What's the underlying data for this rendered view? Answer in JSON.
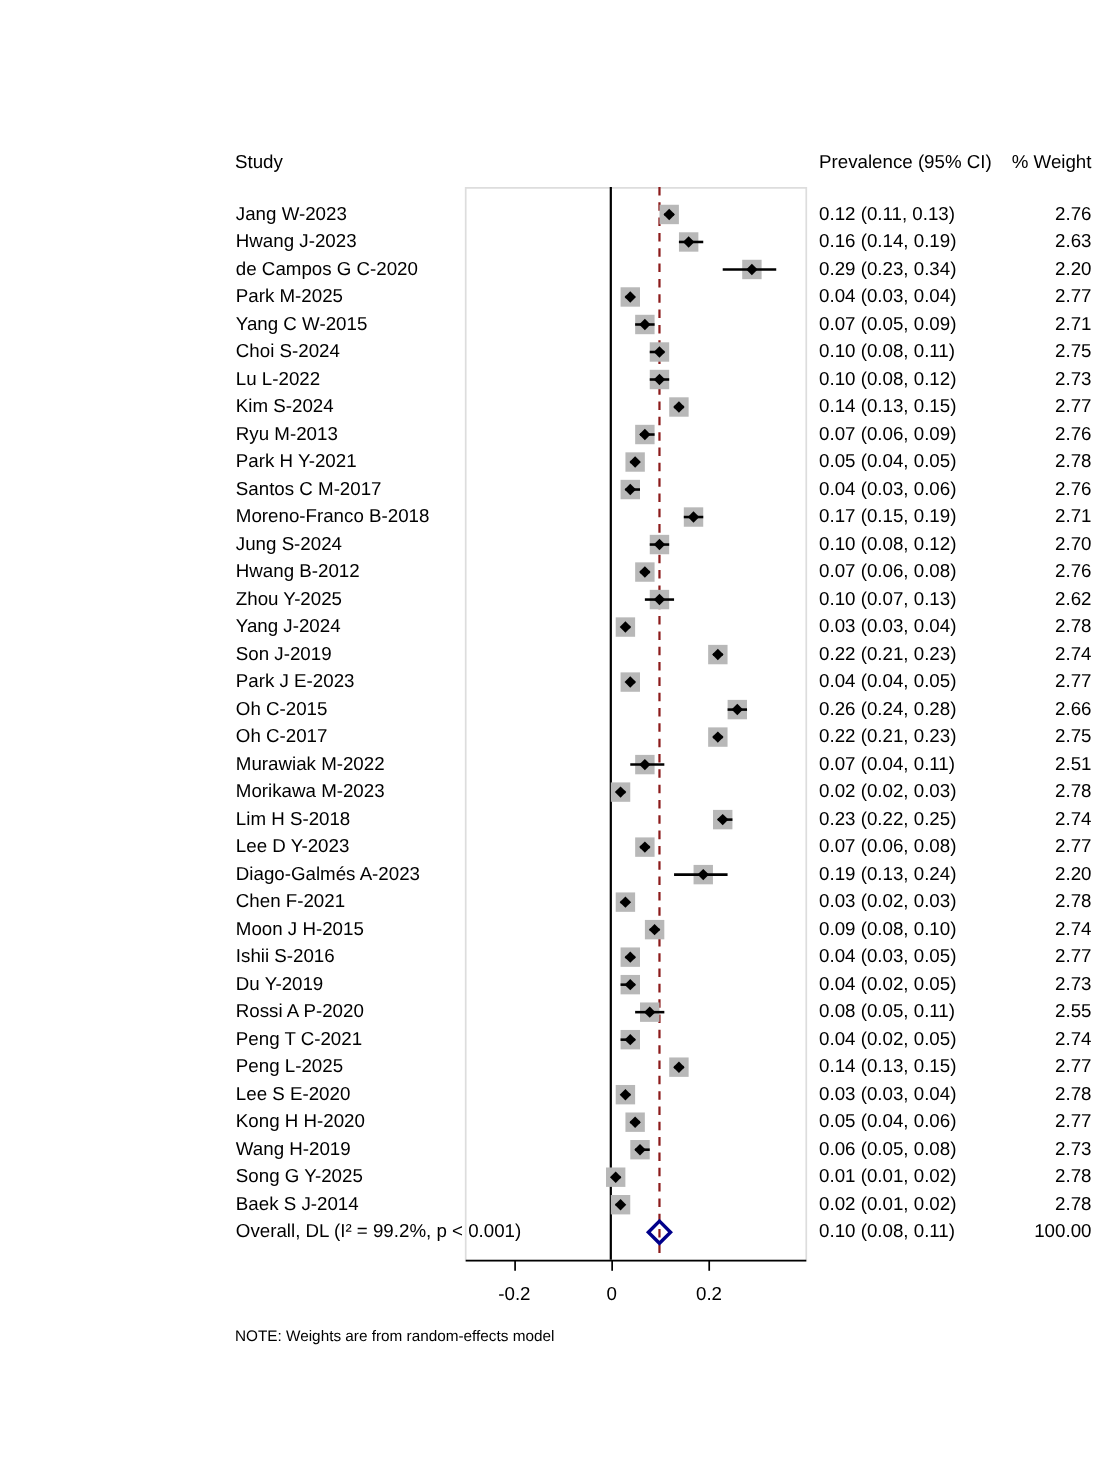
{
  "chart_data": {
    "type": "scatter",
    "orientation": "horizontal",
    "categories": [
      "Jang W-2023",
      "Hwang J-2023",
      "de Campos G C-2020",
      "Park M-2025",
      "Yang C W-2015",
      "Choi S-2024",
      "Lu L-2022",
      "Kim S-2024",
      "Ryu M-2013",
      "Park H Y-2021",
      "Santos C M-2017",
      "Moreno-Franco B-2018",
      "Jung S-2024",
      "Hwang B-2012",
      "Zhou Y-2025",
      "Yang J-2024",
      "Son J-2019",
      "Park J E-2023",
      "Oh C-2015",
      "Oh C-2017",
      "Murawiak M-2022",
      "Morikawa M-2023",
      "Lim H S-2018",
      "Lee D Y-2023",
      "Diago-Galmés A-2023",
      "Chen F-2021",
      "Moon J H-2015",
      "Ishii S-2016",
      "Du Y-2019",
      "Rossi A P-2020",
      "Peng T C-2021",
      "Peng L-2025",
      "Lee S E-2020",
      "Kong H H-2020",
      "Wang H-2019",
      "Song G Y-2025",
      "Baek S J-2014",
      "Overall, DL (I² = 99.2%, p < 0.001)"
    ],
    "series": [
      {
        "marker": "diamond",
        "color": "#000000",
        "values": [
          0.12,
          0.16,
          0.29,
          0.04,
          0.07,
          0.1,
          0.1,
          0.14,
          0.07,
          0.05,
          0.04,
          0.17,
          0.1,
          0.07,
          0.1,
          0.03,
          0.22,
          0.04,
          0.26,
          0.22,
          0.07,
          0.02,
          0.23,
          0.07,
          0.19,
          0.03,
          0.09,
          0.04,
          0.04,
          0.08,
          0.04,
          0.14,
          0.03,
          0.05,
          0.06,
          0.01,
          0.02,
          null
        ],
        "errors": [
          [
            0.11,
            0.13
          ],
          [
            0.14,
            0.19
          ],
          [
            0.23,
            0.34
          ],
          [
            0.03,
            0.04
          ],
          [
            0.05,
            0.09
          ],
          [
            0.08,
            0.11
          ],
          [
            0.08,
            0.12
          ],
          [
            0.13,
            0.15
          ],
          [
            0.06,
            0.09
          ],
          [
            0.04,
            0.05
          ],
          [
            0.03,
            0.06
          ],
          [
            0.15,
            0.19
          ],
          [
            0.08,
            0.12
          ],
          [
            0.06,
            0.08
          ],
          [
            0.07,
            0.13
          ],
          [
            0.03,
            0.04
          ],
          [
            0.21,
            0.23
          ],
          [
            0.04,
            0.05
          ],
          [
            0.24,
            0.28
          ],
          [
            0.21,
            0.23
          ],
          [
            0.04,
            0.11
          ],
          [
            0.02,
            0.03
          ],
          [
            0.22,
            0.25
          ],
          [
            0.06,
            0.08
          ],
          [
            0.13,
            0.24
          ],
          [
            0.02,
            0.03
          ],
          [
            0.08,
            0.1
          ],
          [
            0.03,
            0.05
          ],
          [
            0.02,
            0.05
          ],
          [
            0.05,
            0.11
          ],
          [
            0.02,
            0.05
          ],
          [
            0.13,
            0.15
          ],
          [
            0.03,
            0.04
          ],
          [
            0.04,
            0.06
          ],
          [
            0.05,
            0.08
          ],
          [
            0.01,
            0.02
          ],
          [
            0.01,
            0.02
          ],
          null
        ],
        "value_labels": [
          "0.12 (0.11, 0.13)",
          "0.16 (0.14, 0.19)",
          "0.29 (0.23, 0.34)",
          "0.04 (0.03, 0.04)",
          "0.07 (0.05, 0.09)",
          "0.10 (0.08, 0.11)",
          "0.10 (0.08, 0.12)",
          "0.14 (0.13, 0.15)",
          "0.07 (0.06, 0.09)",
          "0.05 (0.04, 0.05)",
          "0.04 (0.03, 0.06)",
          "0.17 (0.15, 0.19)",
          "0.10 (0.08, 0.12)",
          "0.07 (0.06, 0.08)",
          "0.10 (0.07, 0.13)",
          "0.03 (0.03, 0.04)",
          "0.22 (0.21, 0.23)",
          "0.04 (0.04, 0.05)",
          "0.26 (0.24, 0.28)",
          "0.22 (0.21, 0.23)",
          "0.07 (0.04, 0.11)",
          "0.02 (0.02, 0.03)",
          "0.23 (0.22, 0.25)",
          "0.07 (0.06, 0.08)",
          "0.19 (0.13, 0.24)",
          "0.03 (0.02, 0.03)",
          "0.09 (0.08, 0.10)",
          "0.04 (0.03, 0.05)",
          "0.04 (0.02, 0.05)",
          "0.08 (0.05, 0.11)",
          "0.04 (0.02, 0.05)",
          "0.14 (0.13, 0.15)",
          "0.03 (0.03, 0.04)",
          "0.05 (0.04, 0.06)",
          "0.06 (0.05, 0.08)",
          "0.01 (0.01, 0.02)",
          "0.02 (0.01, 0.02)",
          "0.10 (0.08, 0.11)"
        ]
      },
      {
        "marker": "diamond",
        "color": "#00008b",
        "values": [
          null,
          null,
          null,
          null,
          null,
          null,
          null,
          null,
          null,
          null,
          null,
          null,
          null,
          null,
          null,
          null,
          null,
          null,
          null,
          null,
          null,
          null,
          null,
          null,
          null,
          null,
          null,
          null,
          null,
          null,
          null,
          null,
          null,
          null,
          null,
          null,
          null,
          0.1
        ]
      }
    ],
    "xlim": [
      -0.3,
      0.4
    ],
    "xticks": [
      -0.2,
      {
        "value": 0,
        "label": "0"
      },
      0.2
    ],
    "ref_lines": [
      {
        "axis": "x",
        "value": 0,
        "color": "#000000",
        "line_style": "solid"
      },
      {
        "axis": "x",
        "value": 0.1,
        "color": "#8b1a1a",
        "line_style": "dashed"
      }
    ],
    "annotations": [
      "Study",
      "Prevalence (95% CI)",
      "% Weight",
      "2.76",
      "2.63",
      "2.20",
      "2.77",
      "2.71",
      "2.75",
      "2.73",
      "2.77",
      "2.76",
      "2.78",
      "2.76",
      "2.71",
      "2.70",
      "2.76",
      "2.62",
      "2.78",
      "2.74",
      "2.77",
      "2.66",
      "2.75",
      "2.51",
      "2.78",
      "2.74",
      "2.77",
      "2.20",
      "2.78",
      "2.74",
      "2.77",
      "2.73",
      "2.55",
      "2.74",
      "2.77",
      "2.78",
      "2.77",
      "2.73",
      "2.78",
      "2.78",
      "100.00",
      "NOTE: Weights are from random-effects model"
    ],
    "grid": false
  }
}
